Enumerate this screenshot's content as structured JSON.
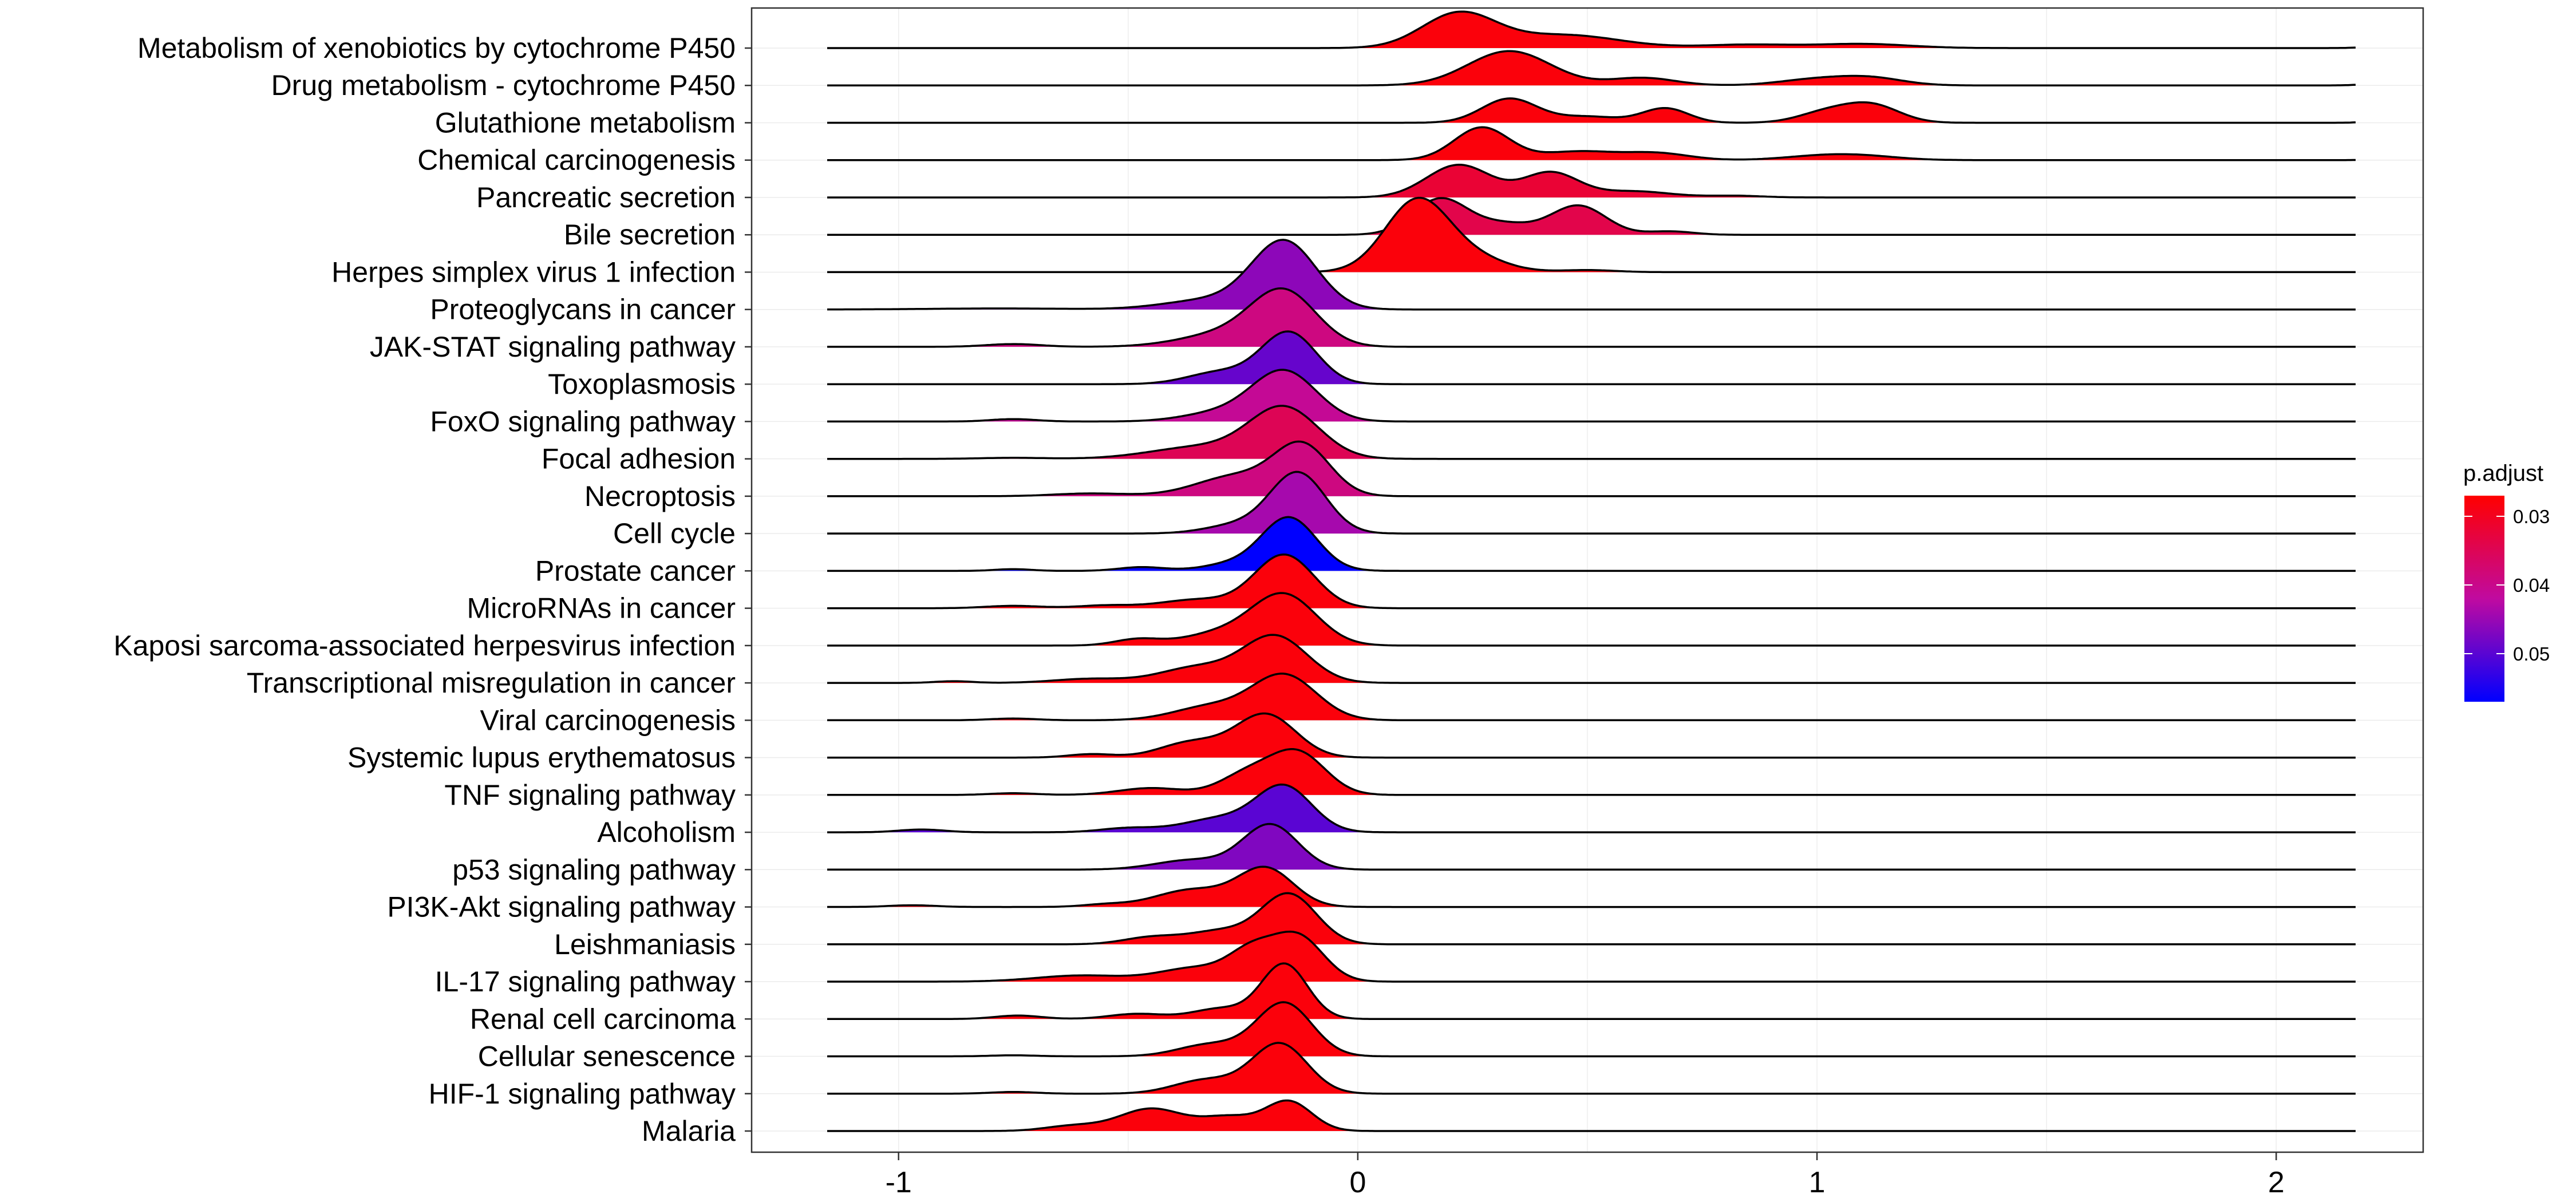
{
  "chart_data": {
    "type": "ridgeline",
    "title": "",
    "xlabel": "",
    "ylabel": "",
    "xlim": [
      -1.32,
      2.32
    ],
    "x_ticks": [
      -1,
      0,
      1,
      2
    ],
    "x_tick_labels": [
      "-1",
      "0",
      "1",
      "2"
    ],
    "grid": true,
    "legend": {
      "title": "p.adjust",
      "position": "right",
      "type": "colorbar",
      "range": [
        0.027,
        0.057
      ],
      "ticks": [
        0.03,
        0.04,
        0.05
      ],
      "tick_labels": [
        "0.03",
        "0.04",
        "0.05"
      ],
      "low_color": "#ff0000",
      "high_color": "#0000ff"
    },
    "series": [
      {
        "name": "Metabolism of xenobiotics by cytochrome P450",
        "p_adjust": 0.028,
        "peaks": [
          [
            0.22,
            0.08,
            1.0
          ],
          [
            0.45,
            0.12,
            0.38
          ],
          [
            0.85,
            0.1,
            0.1
          ],
          [
            1.1,
            0.1,
            0.12
          ],
          [
            2.27,
            0.05,
            0.1
          ]
        ]
      },
      {
        "name": "Drug metabolism - cytochrome P450",
        "p_adjust": 0.028,
        "peaks": [
          [
            0.33,
            0.09,
            1.0
          ],
          [
            0.62,
            0.07,
            0.22
          ],
          [
            1.0,
            0.08,
            0.18
          ],
          [
            1.12,
            0.07,
            0.2
          ],
          [
            2.27,
            0.05,
            0.13
          ]
        ]
      },
      {
        "name": "Glutathione metabolism",
        "p_adjust": 0.028,
        "peaks": [
          [
            0.33,
            0.06,
            0.7
          ],
          [
            0.5,
            0.07,
            0.18
          ],
          [
            0.67,
            0.05,
            0.42
          ],
          [
            1.02,
            0.06,
            0.3
          ],
          [
            1.12,
            0.06,
            0.5
          ],
          [
            2.27,
            0.04,
            0.26
          ]
        ]
      },
      {
        "name": "Chemical carcinogenesis",
        "p_adjust": 0.028,
        "peaks": [
          [
            0.27,
            0.06,
            0.95
          ],
          [
            0.48,
            0.08,
            0.25
          ],
          [
            0.65,
            0.07,
            0.2
          ],
          [
            1.0,
            0.08,
            0.1
          ],
          [
            1.1,
            0.08,
            0.11
          ],
          [
            2.27,
            0.04,
            0.08
          ]
        ]
      },
      {
        "name": "Pancreatic secretion",
        "p_adjust": 0.032,
        "peaks": [
          [
            0.22,
            0.07,
            0.95
          ],
          [
            0.42,
            0.06,
            0.72
          ],
          [
            0.6,
            0.08,
            0.18
          ],
          [
            0.82,
            0.06,
            0.05
          ]
        ]
      },
      {
        "name": "Bile secretion",
        "p_adjust": 0.034,
        "peaks": [
          [
            0.18,
            0.06,
            1.05
          ],
          [
            0.32,
            0.06,
            0.3
          ],
          [
            0.48,
            0.06,
            0.85
          ],
          [
            0.68,
            0.05,
            0.1
          ]
        ]
      },
      {
        "name": "Herpes simplex virus 1 infection",
        "p_adjust": 0.028,
        "peaks": [
          [
            0.13,
            0.07,
            2.1
          ],
          [
            0.26,
            0.07,
            0.35
          ],
          [
            0.5,
            0.06,
            0.06
          ]
        ]
      },
      {
        "name": "Proteoglycans in cancer",
        "p_adjust": 0.046,
        "peaks": [
          [
            -0.16,
            0.07,
            1.95
          ],
          [
            -0.32,
            0.1,
            0.28
          ],
          [
            -0.78,
            0.15,
            0.03
          ]
        ]
      },
      {
        "name": "JAK-STAT signaling pathway",
        "p_adjust": 0.039,
        "peaks": [
          [
            -0.16,
            0.07,
            1.5
          ],
          [
            -0.28,
            0.1,
            0.4
          ],
          [
            -0.75,
            0.06,
            0.08
          ]
        ]
      },
      {
        "name": "Toxoplasmosis",
        "p_adjust": 0.049,
        "peaks": [
          [
            -0.15,
            0.06,
            1.5
          ],
          [
            -0.3,
            0.07,
            0.35
          ]
        ]
      },
      {
        "name": "FoxO signaling pathway",
        "p_adjust": 0.041,
        "peaks": [
          [
            -0.16,
            0.07,
            1.45
          ],
          [
            -0.3,
            0.08,
            0.25
          ],
          [
            -0.75,
            0.05,
            0.07
          ]
        ]
      },
      {
        "name": "Focal adhesion",
        "p_adjust": 0.035,
        "peaks": [
          [
            -0.16,
            0.075,
            1.45
          ],
          [
            -0.34,
            0.11,
            0.35
          ],
          [
            -0.75,
            0.07,
            0.03
          ]
        ]
      },
      {
        "name": "Necroptosis",
        "p_adjust": 0.039,
        "peaks": [
          [
            -0.12,
            0.06,
            1.4
          ],
          [
            -0.26,
            0.09,
            0.6
          ],
          [
            -0.58,
            0.08,
            0.08
          ]
        ]
      },
      {
        "name": "Cell cycle",
        "p_adjust": 0.044,
        "peaks": [
          [
            -0.13,
            0.06,
            1.75
          ],
          [
            -0.26,
            0.07,
            0.25
          ]
        ]
      },
      {
        "name": "Prostate cancer",
        "p_adjust": 0.057,
        "peaks": [
          [
            -0.15,
            0.06,
            1.55
          ],
          [
            -0.28,
            0.06,
            0.18
          ],
          [
            -0.47,
            0.05,
            0.11
          ],
          [
            -0.75,
            0.04,
            0.05
          ]
        ]
      },
      {
        "name": "MicroRNAs in cancer",
        "p_adjust": 0.028,
        "peaks": [
          [
            -0.16,
            0.065,
            1.55
          ],
          [
            -0.35,
            0.08,
            0.25
          ],
          [
            -0.55,
            0.06,
            0.08
          ],
          [
            -0.75,
            0.06,
            0.07
          ]
        ]
      },
      {
        "name": "Kaposi sarcoma-associated herpesvirus infection",
        "p_adjust": 0.028,
        "peaks": [
          [
            -0.16,
            0.07,
            1.45
          ],
          [
            -0.3,
            0.08,
            0.35
          ],
          [
            -0.48,
            0.05,
            0.18
          ]
        ]
      },
      {
        "name": "Transcriptional misregulation in cancer",
        "p_adjust": 0.028,
        "peaks": [
          [
            -0.18,
            0.07,
            1.35
          ],
          [
            -0.35,
            0.08,
            0.45
          ],
          [
            -0.58,
            0.08,
            0.12
          ],
          [
            -0.88,
            0.04,
            0.05
          ]
        ]
      },
      {
        "name": "Viral carcinogenesis",
        "p_adjust": 0.028,
        "peaks": [
          [
            -0.16,
            0.07,
            1.3
          ],
          [
            -0.32,
            0.08,
            0.4
          ],
          [
            -0.75,
            0.05,
            0.05
          ]
        ]
      },
      {
        "name": "Systemic lupus erythematosus",
        "p_adjust": 0.028,
        "peaks": [
          [
            -0.2,
            0.065,
            1.25
          ],
          [
            -0.36,
            0.07,
            0.45
          ],
          [
            -0.58,
            0.05,
            0.1
          ]
        ]
      },
      {
        "name": "TNF signaling pathway",
        "p_adjust": 0.028,
        "peaks": [
          [
            -0.13,
            0.06,
            1.2
          ],
          [
            -0.24,
            0.06,
            0.6
          ],
          [
            -0.45,
            0.07,
            0.2
          ],
          [
            -0.75,
            0.05,
            0.05
          ]
        ]
      },
      {
        "name": "Alcoholism",
        "p_adjust": 0.05,
        "peaks": [
          [
            -0.16,
            0.06,
            1.3
          ],
          [
            -0.3,
            0.08,
            0.4
          ],
          [
            -0.5,
            0.06,
            0.12
          ],
          [
            -0.95,
            0.05,
            0.08
          ]
        ]
      },
      {
        "name": "p53 signaling pathway",
        "p_adjust": 0.047,
        "peaks": [
          [
            -0.19,
            0.06,
            1.3
          ],
          [
            -0.36,
            0.08,
            0.28
          ]
        ]
      },
      {
        "name": "PI3K-Akt signaling pathway",
        "p_adjust": 0.028,
        "peaks": [
          [
            -0.2,
            0.06,
            1.1
          ],
          [
            -0.36,
            0.08,
            0.5
          ],
          [
            -0.55,
            0.05,
            0.07
          ],
          [
            -0.97,
            0.05,
            0.05
          ]
        ]
      },
      {
        "name": "Leishmaniasis",
        "p_adjust": 0.028,
        "peaks": [
          [
            -0.15,
            0.06,
            1.45
          ],
          [
            -0.3,
            0.07,
            0.38
          ],
          [
            -0.45,
            0.06,
            0.2
          ]
        ]
      },
      {
        "name": "IL-17 signaling pathway",
        "p_adjust": 0.028,
        "peaks": [
          [
            -0.13,
            0.055,
            1.3
          ],
          [
            -0.23,
            0.05,
            0.8
          ],
          [
            -0.35,
            0.08,
            0.4
          ],
          [
            -0.6,
            0.1,
            0.18
          ]
        ]
      },
      {
        "name": "Renal cell carcinoma",
        "p_adjust": 0.028,
        "peaks": [
          [
            -0.16,
            0.05,
            1.6
          ],
          [
            -0.3,
            0.06,
            0.3
          ],
          [
            -0.48,
            0.06,
            0.15
          ],
          [
            -0.74,
            0.05,
            0.1
          ]
        ]
      },
      {
        "name": "Cellular senescence",
        "p_adjust": 0.028,
        "peaks": [
          [
            -0.16,
            0.06,
            1.55
          ],
          [
            -0.32,
            0.07,
            0.35
          ],
          [
            -0.75,
            0.05,
            0.03
          ]
        ]
      },
      {
        "name": "HIF-1 signaling pathway",
        "p_adjust": 0.028,
        "peaks": [
          [
            -0.17,
            0.06,
            1.45
          ],
          [
            -0.33,
            0.07,
            0.4
          ],
          [
            -0.75,
            0.05,
            0.05
          ]
        ]
      },
      {
        "name": "Malaria",
        "p_adjust": 0.028,
        "peaks": [
          [
            -0.15,
            0.05,
            0.85
          ],
          [
            -0.28,
            0.06,
            0.4
          ],
          [
            -0.45,
            0.07,
            0.65
          ],
          [
            -0.62,
            0.06,
            0.15
          ]
        ]
      }
    ]
  }
}
